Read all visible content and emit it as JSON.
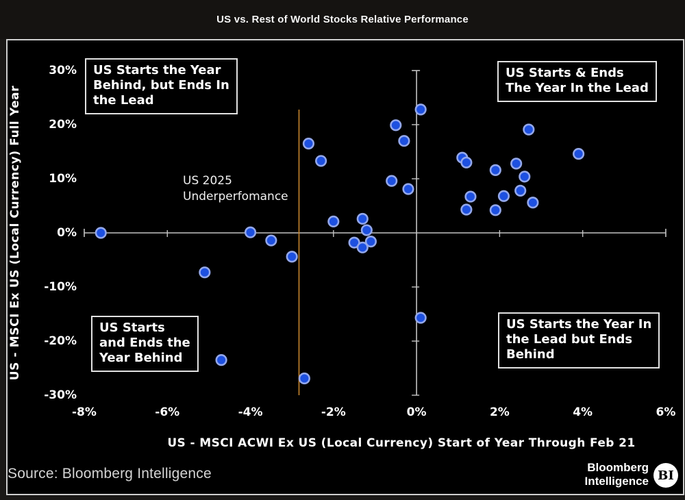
{
  "header": {
    "title": "US vs. Rest of World Stocks Relative Performance"
  },
  "chart_data": {
    "type": "scatter",
    "title": "US vs. Rest of World Stocks Relative Performance",
    "xlabel": "US - MSCI ACWI Ex US (Local Currency) Start of Year Through Feb 21",
    "ylabel": "US - MSCI Ex US (Local Currency) Full Year",
    "xlim": [
      -8,
      6
    ],
    "ylim": [
      -30,
      30
    ],
    "grid": false,
    "x_tick_values": [
      -8,
      -6,
      -4,
      -2,
      0,
      2,
      4,
      6
    ],
    "x_tick_labels": [
      "-8%",
      "-6%",
      "-4%",
      "-2%",
      "0%",
      "2%",
      "4%",
      "6%"
    ],
    "y_tick_values": [
      30,
      20,
      10,
      0,
      -10,
      -20,
      -30
    ],
    "y_tick_labels": [
      "30%",
      "20%",
      "10%",
      "0%",
      "-10%",
      "-20%",
      "-30%"
    ],
    "points": [
      [
        -7.6,
        0.0
      ],
      [
        -5.1,
        -7.3
      ],
      [
        -4.7,
        -23.5
      ],
      [
        -4.0,
        0.1
      ],
      [
        -3.5,
        -1.4
      ],
      [
        -3.0,
        -4.4
      ],
      [
        -2.7,
        -26.9
      ],
      [
        -2.6,
        16.5
      ],
      [
        -2.3,
        13.3
      ],
      [
        -2.0,
        2.1
      ],
      [
        -1.5,
        -1.8
      ],
      [
        -1.3,
        -2.7
      ],
      [
        -1.3,
        2.6
      ],
      [
        -1.2,
        0.5
      ],
      [
        -1.1,
        -1.6
      ],
      [
        -0.6,
        9.6
      ],
      [
        -0.5,
        19.9
      ],
      [
        -0.3,
        17.0
      ],
      [
        -0.2,
        8.1
      ],
      [
        0.1,
        22.8
      ],
      [
        0.1,
        -15.7
      ],
      [
        1.1,
        13.9
      ],
      [
        1.2,
        13.0
      ],
      [
        1.3,
        6.7
      ],
      [
        1.2,
        4.3
      ],
      [
        1.9,
        11.6
      ],
      [
        1.9,
        4.2
      ],
      [
        2.1,
        6.8
      ],
      [
        2.4,
        12.8
      ],
      [
        2.5,
        7.8
      ],
      [
        2.6,
        10.4
      ],
      [
        2.7,
        19.1
      ],
      [
        2.8,
        5.6
      ],
      [
        3.9,
        14.6
      ]
    ],
    "point_color": "#1d50e0",
    "point_edge_color": "#93a7ea",
    "axis_line_color": "#c4c4c4",
    "reference_line": {
      "x": -2.83,
      "color": "#c8862e",
      "label": "US 2025\nUnderperfomance"
    },
    "annotations": {
      "top_left": "US Starts the Year\nBehind, but Ends In\nthe Lead",
      "top_right": "US Starts & Ends\nThe Year In the Lead",
      "bottom_left": "US Starts\nand Ends the\nYear Behind",
      "bottom_right": "US Starts the Year In\nthe Lead but Ends\nBehind"
    }
  },
  "footer": {
    "source": "Source: Bloomberg Intelligence",
    "brand_line1": "Bloomberg",
    "brand_line2": "Intelligence",
    "logo_text": "BI"
  }
}
